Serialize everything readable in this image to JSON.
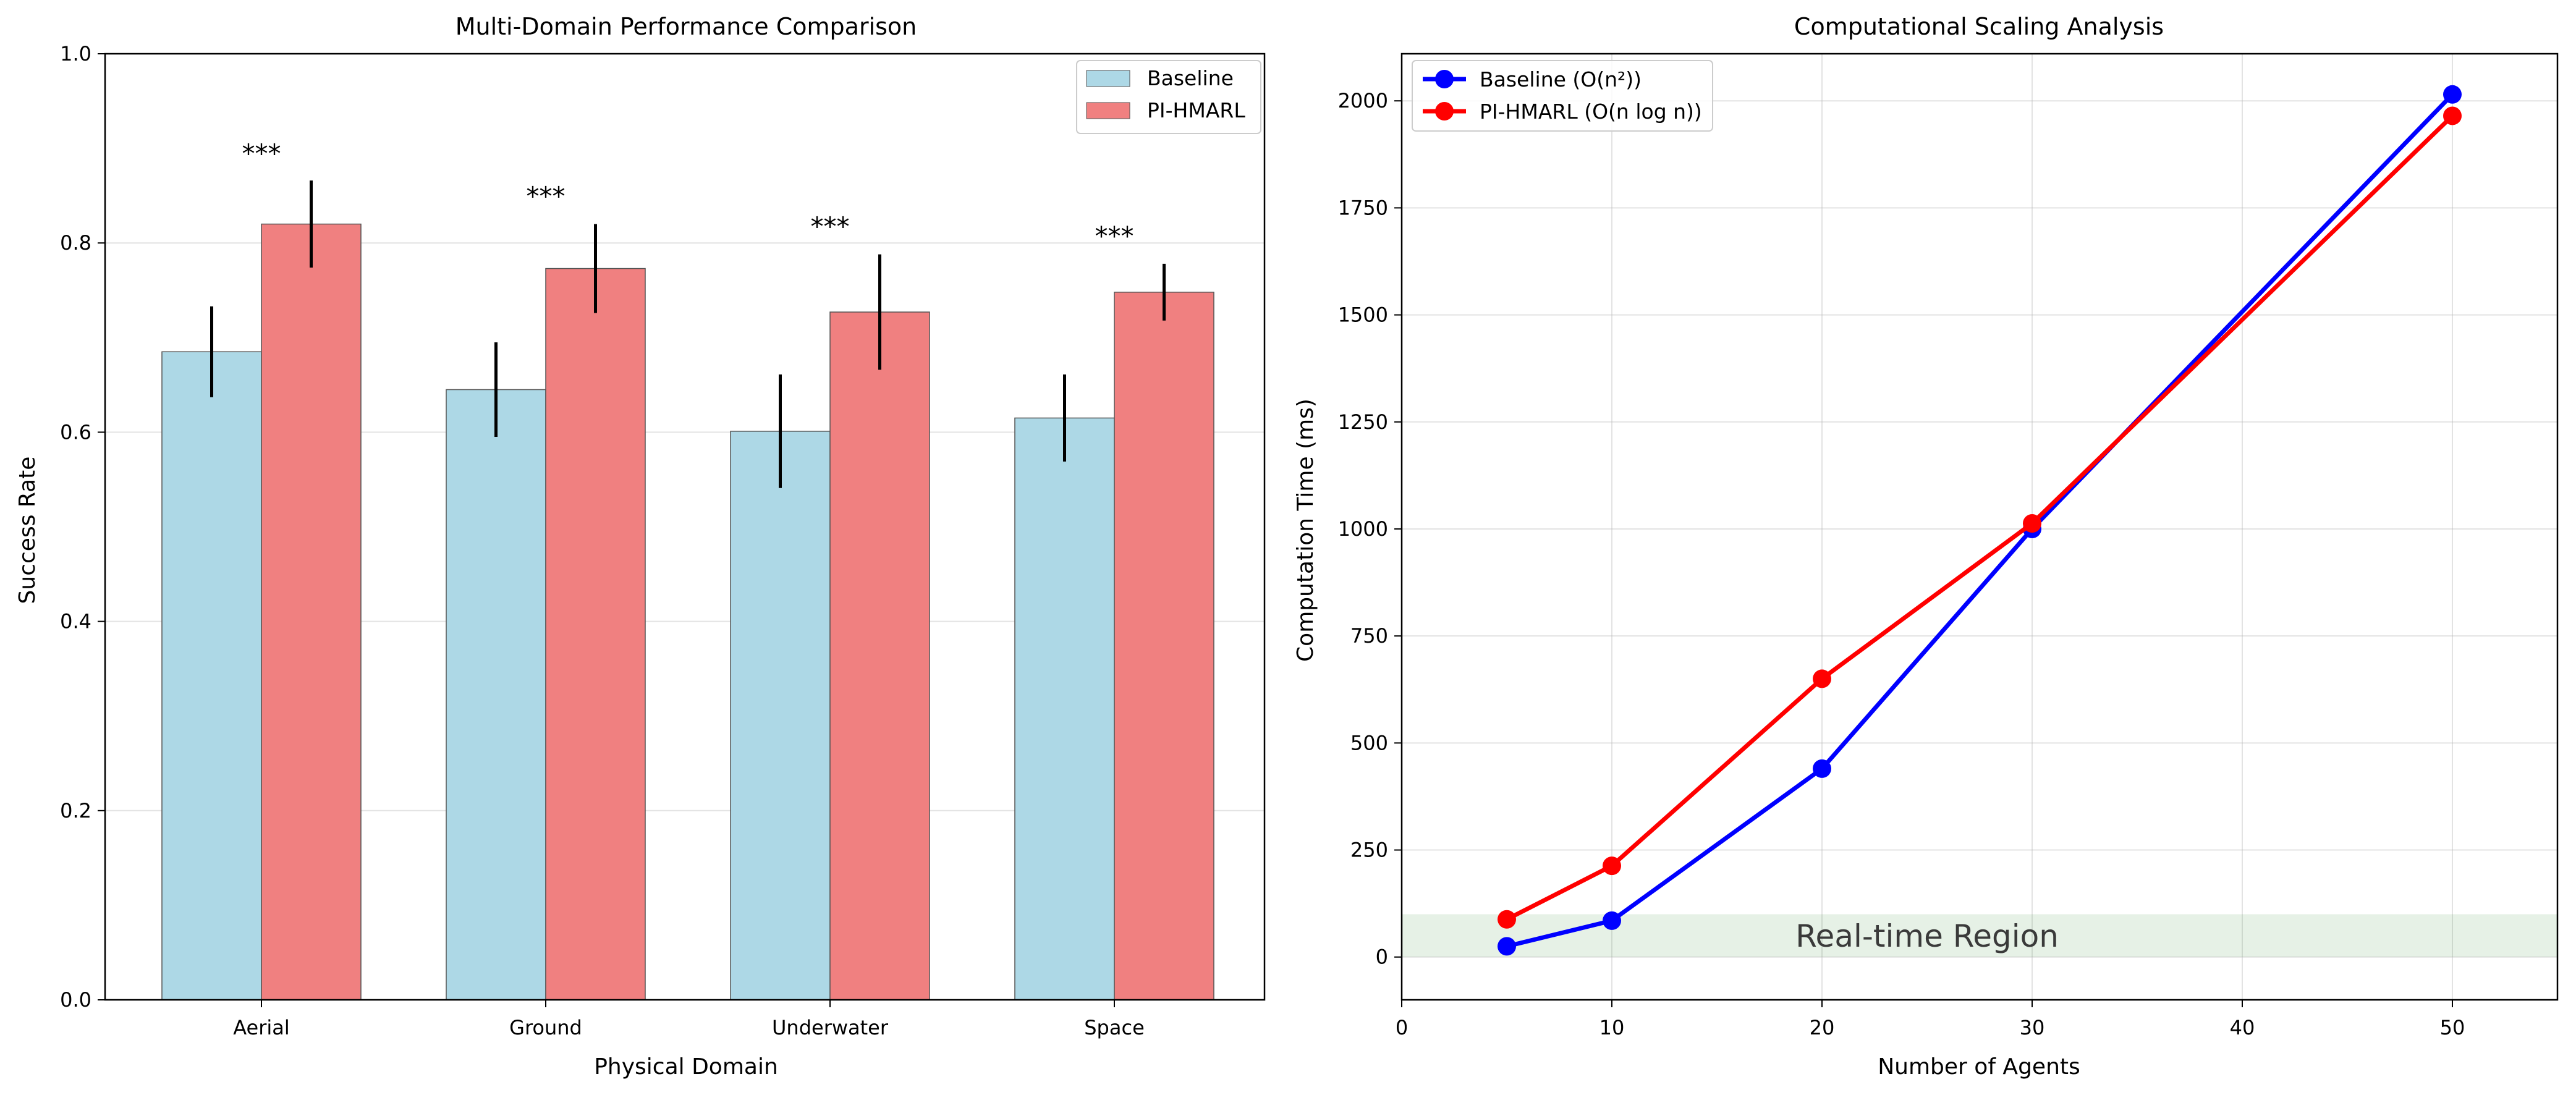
{
  "chart_data": [
    {
      "type": "bar",
      "title": "Multi-Domain Performance Comparison",
      "xlabel": "Physical Domain",
      "ylabel": "Success Rate",
      "ylim": [
        0,
        1.0
      ],
      "yticks": [
        "0.0",
        "0.2",
        "0.4",
        "0.6",
        "0.8",
        "1.0"
      ],
      "categories": [
        "Aerial",
        "Ground",
        "Underwater",
        "Space"
      ],
      "series": [
        {
          "name": "Baseline",
          "values": [
            0.685,
            0.645,
            0.601,
            0.615
          ],
          "errors": [
            0.048,
            0.05,
            0.06,
            0.046
          ],
          "color": "#add8e6"
        },
        {
          "name": "PI-HMARL",
          "values": [
            0.82,
            0.773,
            0.727,
            0.748
          ],
          "errors": [
            0.046,
            0.047,
            0.061,
            0.03
          ],
          "color": "#f08080"
        }
      ],
      "annotations": [
        "***",
        "***",
        "***",
        "***"
      ],
      "annotation_y": [
        0.885,
        0.84,
        0.808,
        0.798
      ],
      "grid": "y",
      "legend": "top-right"
    },
    {
      "type": "line",
      "title": "Computational Scaling Analysis",
      "xlabel": "Number of Agents",
      "ylabel": "Computation Time (ms)",
      "xlim": [
        0,
        55
      ],
      "ylim": [
        -100,
        2110
      ],
      "xticks": [
        0,
        10,
        20,
        30,
        40,
        50
      ],
      "yticks": [
        0,
        250,
        500,
        750,
        1000,
        1250,
        1500,
        1750,
        2000
      ],
      "x": [
        5,
        10,
        20,
        30,
        50
      ],
      "series": [
        {
          "name": "Baseline (O(n²))",
          "values": [
            25,
            85,
            440,
            1000,
            2015
          ],
          "color": "#0000ff"
        },
        {
          "name": "PI-HMARL (O(n log n))",
          "values": [
            88,
            213,
            650,
            1013,
            1965
          ],
          "color": "#ff0000"
        }
      ],
      "region": {
        "label": "Real-time Region",
        "y_range": [
          0,
          100
        ],
        "color": "#2e8b2e"
      },
      "grid": "both",
      "legend": "top-left"
    }
  ]
}
